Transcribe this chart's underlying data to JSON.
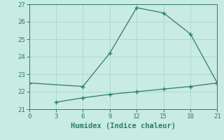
{
  "line1_x": [
    0,
    6,
    9,
    12,
    15,
    18,
    21
  ],
  "line1_y": [
    22.5,
    22.3,
    24.2,
    26.8,
    26.5,
    25.3,
    22.5
  ],
  "line2_x": [
    3,
    6,
    9,
    12,
    15,
    18,
    21
  ],
  "line2_y": [
    21.4,
    21.65,
    21.85,
    22.0,
    22.15,
    22.3,
    22.5
  ],
  "line_color": "#2e7d6e",
  "bg_color": "#c8ebe3",
  "grid_color": "#afd8ce",
  "xlabel": "Humidex (Indice chaleur)",
  "xlim": [
    0,
    21
  ],
  "ylim": [
    21,
    27
  ],
  "xticks": [
    0,
    3,
    6,
    9,
    12,
    15,
    18,
    21
  ],
  "yticks": [
    21,
    22,
    23,
    24,
    25,
    26,
    27
  ],
  "marker": "+",
  "markersize": 4,
  "linewidth": 0.9,
  "tick_fontsize": 6.5,
  "xlabel_fontsize": 7.5
}
